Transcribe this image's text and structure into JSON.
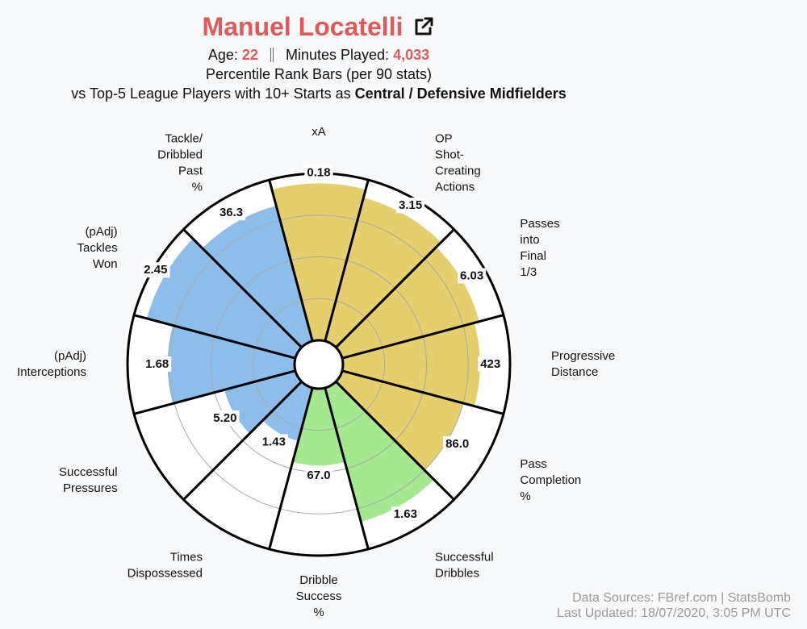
{
  "chart_data": {
    "type": "polar-bar",
    "title": "Manuel Locatelli",
    "age_label": "Age:",
    "age": "22",
    "minutes_label": "Minutes Played:",
    "minutes": "4,033",
    "subtitle": "Percentile Rank Bars (per 90 stats)",
    "comparison": "vs Top-5 League Players with 10+ Starts as",
    "position_group": "Central / Defensive Midfielders",
    "categories": [
      [
        "xA"
      ],
      [
        "OP",
        "Shot-",
        "Creating",
        "Actions"
      ],
      [
        "Passes",
        "into",
        "Final",
        "1/3"
      ],
      [
        "Progressive",
        "Distance"
      ],
      [
        "Pass",
        "Completion",
        "%"
      ],
      [
        "Successful",
        "Dribbles"
      ],
      [
        "Dribble",
        "Success",
        "%"
      ],
      [
        "Times",
        "Dispossessed"
      ],
      [
        "Successful",
        "Pressures"
      ],
      [
        "(pAdj)",
        "Interceptions"
      ],
      [
        "(pAdj)",
        "Tackles",
        "Won"
      ],
      [
        "Tackle/",
        "Dribbled",
        "Past",
        "%"
      ]
    ],
    "values": [
      94,
      89,
      85,
      82,
      75,
      83,
      46,
      33,
      44,
      76,
      92,
      84
    ],
    "stats": [
      "0.18",
      "3.15",
      "6.03",
      "423",
      "86.0",
      "1.63",
      "67.0",
      "1.43",
      "5.20",
      "1.68",
      "2.45",
      "36.3"
    ],
    "colors": [
      "#e4cf6c",
      "#e4cf6c",
      "#e4cf6c",
      "#e4cf6c",
      "#e4cf6c",
      "#a4e88f",
      "#a4e88f",
      "#8dbdea",
      "#8dbdea",
      "#8dbdea",
      "#8dbdea",
      "#8dbdea"
    ],
    "rlim": [
      0,
      100
    ],
    "rticks": [
      25,
      50,
      75
    ],
    "sources": "Data Sources: FBref.com | StatsBomb",
    "updated": "Last Updated: 18/07/2020, 3:05 PM UTC"
  }
}
